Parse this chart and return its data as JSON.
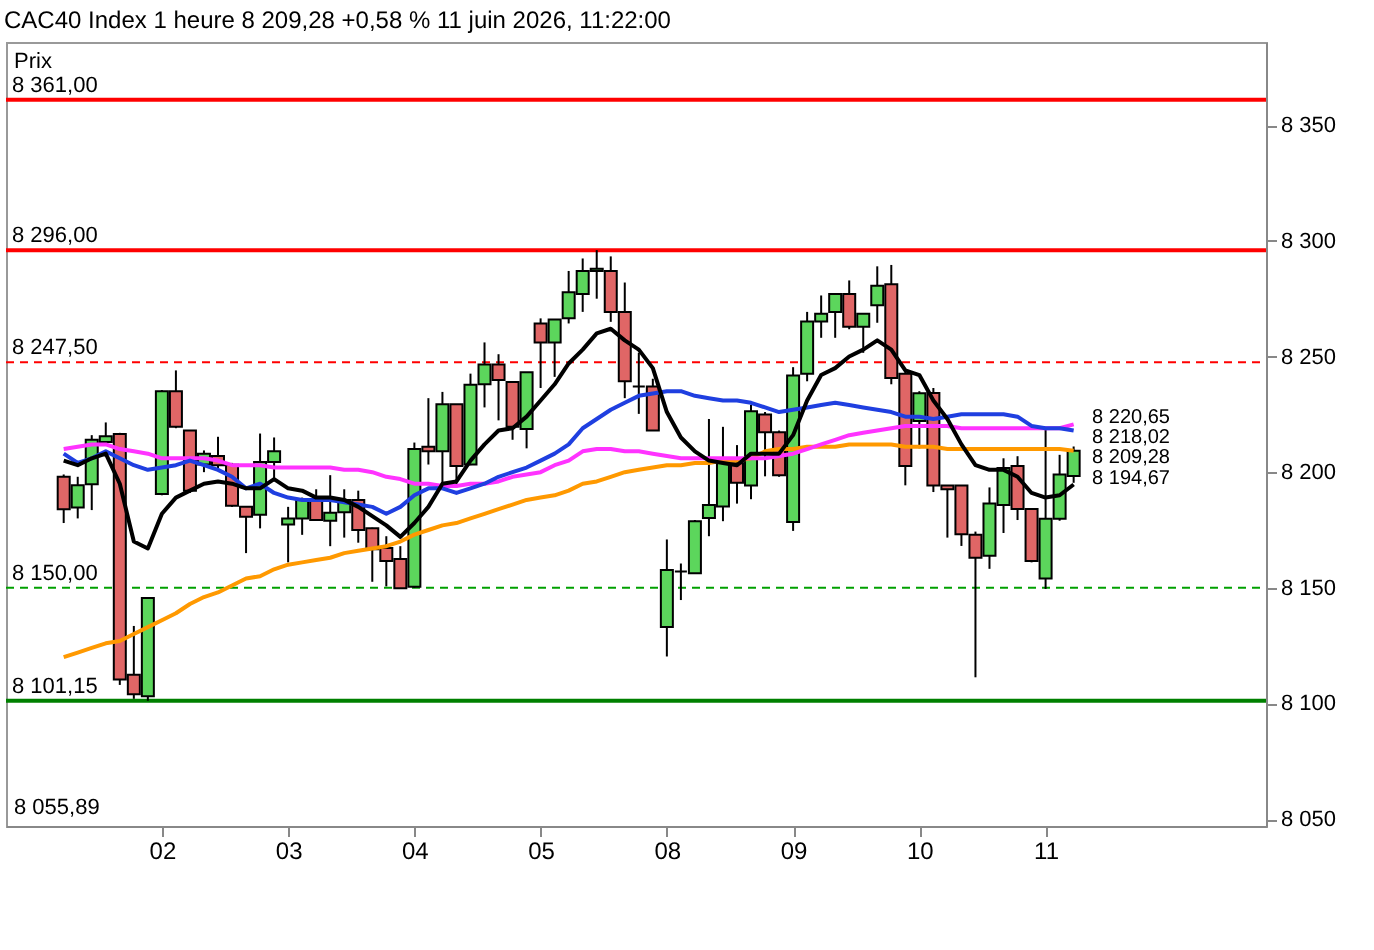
{
  "chart_data": {
    "type": "candlestick",
    "title": "CAC40 Index 1 heure 8 209,28 +0,58 % 11 juin 2026, 11:22:00",
    "categories": [
      null,
      null,
      null,
      null,
      null,
      null,
      null,
      "02",
      null,
      null,
      null,
      null,
      null,
      null,
      null,
      null,
      "03",
      null,
      null,
      null,
      null,
      null,
      null,
      null,
      null,
      "04",
      null,
      null,
      null,
      null,
      null,
      null,
      null,
      null,
      "05",
      null,
      null,
      null,
      null,
      null,
      null,
      null,
      null,
      "08",
      null,
      null,
      null,
      null,
      null,
      null,
      null,
      null,
      "09",
      null,
      null,
      null,
      null,
      null,
      null,
      null,
      null,
      "10",
      null,
      null,
      null,
      null,
      null,
      null,
      null,
      null,
      "11",
      null,
      null
    ],
    "colors": [
      "#e06666",
      "#5cd65c",
      "#5cd65c",
      "#5cd65c",
      "#e06666",
      "#e06666",
      "#5cd65c",
      "#5cd65c",
      "#e06666",
      "#e06666",
      "#5cd65c",
      "#e06666",
      "#e06666",
      "#e06666",
      "#5cd65c",
      "#5cd65c",
      "#5cd65c",
      "#5cd65c",
      "#e06666",
      "#5cd65c",
      "#5cd65c",
      "#e06666",
      "#e06666",
      "#e06666",
      "#e06666",
      "#5cd65c",
      "#e06666",
      "#5cd65c",
      "#e06666",
      "#5cd65c",
      "#5cd65c",
      "#e06666",
      "#e06666",
      "#5cd65c",
      "#e06666",
      "#5cd65c",
      "#5cd65c",
      "#5cd65c",
      "#5cd65c",
      "#e06666",
      "#e06666",
      "#000000",
      "#e06666",
      "#5cd65c",
      "#000000",
      "#5cd65c",
      "#5cd65c",
      "#5cd65c",
      "#e06666",
      "#5cd65c",
      "#e06666",
      "#e06666",
      "#5cd65c",
      "#5cd65c",
      "#5cd65c",
      "#5cd65c",
      "#e06666",
      "#5cd65c",
      "#5cd65c",
      "#e06666",
      "#e06666",
      "#5cd65c",
      "#e06666",
      "#e06666",
      "#e06666",
      "#e06666",
      "#5cd65c",
      "#5cd65c",
      "#e06666",
      "#e06666",
      "#5cd65c",
      "#5cd65c",
      "#5cd65c"
    ],
    "ohlc": [
      [
        8198,
        8199,
        8178,
        8184
      ],
      [
        8184.7,
        8198,
        8180,
        8194.3
      ],
      [
        8194.8,
        8216,
        8183.6,
        8214
      ],
      [
        8213,
        8221.5,
        8212,
        8215.5
      ],
      [
        8216.5,
        8217,
        8108,
        8110.4
      ],
      [
        8112.4,
        8133.5,
        8102,
        8104
      ],
      [
        8103.1,
        8145.6,
        8101.15,
        8145.6
      ],
      [
        8190.6,
        8235.5,
        8190,
        8235
      ],
      [
        8235,
        8244,
        8219,
        8219.6
      ],
      [
        8218,
        8218,
        8191,
        8192
      ],
      [
        8203.3,
        8209.4,
        8200,
        8208
      ],
      [
        8207,
        8215.3,
        8201,
        8203
      ],
      [
        8203.2,
        8204,
        8185,
        8185.5
      ],
      [
        8185,
        8185,
        8165,
        8180.7
      ],
      [
        8181.6,
        8216.7,
        8175.7,
        8204.4
      ],
      [
        8204.4,
        8215,
        8196,
        8209
      ],
      [
        8177.4,
        8185,
        8161,
        8180
      ],
      [
        8180,
        8189,
        8172.9,
        8188
      ],
      [
        8188,
        8192.6,
        8179,
        8179.3
      ],
      [
        8179,
        8198.7,
        8168,
        8182.5
      ],
      [
        8182.7,
        8192.6,
        8171.7,
        8188
      ],
      [
        8188,
        8192,
        8169.5,
        8175
      ],
      [
        8175.7,
        8176,
        8152.6,
        8166.7
      ],
      [
        8167.2,
        8172.3,
        8150.6,
        8161.6
      ],
      [
        8162.5,
        8168,
        8149.8,
        8149.8
      ],
      [
        8150.4,
        8212.8,
        8150,
        8210
      ],
      [
        8211,
        8232,
        8203.3,
        8209
      ],
      [
        8209,
        8234.7,
        8194.8,
        8229.4
      ],
      [
        8229.4,
        8229.4,
        8193.4,
        8202.7
      ],
      [
        8203.3,
        8242.6,
        8203,
        8237.8
      ],
      [
        8238,
        8256.1,
        8228,
        8246.6
      ],
      [
        8246.6,
        8251,
        8222.4,
        8239.8
      ],
      [
        8239,
        8239,
        8214,
        8219.6
      ],
      [
        8218.7,
        8243.2,
        8210.3,
        8243.2
      ],
      [
        8264.3,
        8266.5,
        8236.4,
        8256.1
      ],
      [
        8256.1,
        8266,
        8241.2,
        8266
      ],
      [
        8266.5,
        8287,
        8264.3,
        8277.8
      ],
      [
        8277,
        8292.4,
        8269.3,
        8287
      ],
      [
        8287,
        8296,
        8275,
        8288
      ],
      [
        8287,
        8293.3,
        8265,
        8269.3
      ],
      [
        8269.3,
        8282,
        8232,
        8239.3
      ],
      [
        8237,
        8251.6,
        8225.2,
        8237
      ],
      [
        8237,
        8240.4,
        8218,
        8218
      ],
      [
        8133,
        8170.9,
        8120.3,
        8157.7
      ],
      [
        8157,
        8160.5,
        8144.7,
        8157
      ],
      [
        8156.3,
        8179.3,
        8156,
        8178.8
      ],
      [
        8180.2,
        8223,
        8172.3,
        8185.8
      ],
      [
        8185.2,
        8219.6,
        8178.8,
        8204.7
      ],
      [
        8203.8,
        8211.7,
        8186.4,
        8195.4
      ],
      [
        8194.2,
        8229.1,
        8188.3,
        8226.3
      ],
      [
        8224.9,
        8226,
        8198.2,
        8217.3
      ],
      [
        8217.3,
        8218,
        8198,
        8198.7
      ],
      [
        8178.5,
        8245.4,
        8174.6,
        8241.8
      ],
      [
        8242.6,
        8269.3,
        8239.3,
        8265.1
      ],
      [
        8265.1,
        8276.4,
        8258.1,
        8268.5
      ],
      [
        8269.3,
        8277,
        8258.1,
        8277
      ],
      [
        8277,
        8282.9,
        8261.8,
        8262.9
      ],
      [
        8262.9,
        8268.5,
        8251.6,
        8268.5
      ],
      [
        8272.2,
        8289,
        8264.6,
        8280.6
      ],
      [
        8281.2,
        8289.6,
        8238,
        8240.7
      ],
      [
        8242.6,
        8244,
        8194.3,
        8202.7
      ],
      [
        8222.1,
        8235,
        8210.3,
        8234.1
      ],
      [
        8234.2,
        8236.4,
        8191.4,
        8194.2
      ],
      [
        8194.2,
        8194.2,
        8171.7,
        8192.6
      ],
      [
        8194.2,
        8194.2,
        8168.1,
        8173.2
      ],
      [
        8172.9,
        8174.3,
        8111.3,
        8163
      ],
      [
        8163.9,
        8193.4,
        8158.2,
        8186.4
      ],
      [
        8185.8,
        8206,
        8173.7,
        8201.8
      ],
      [
        8202.7,
        8206.9,
        8179.3,
        8184.1
      ],
      [
        8184.1,
        8184.1,
        8161,
        8161.6
      ],
      [
        8154,
        8218.7,
        8149.5,
        8179.9
      ],
      [
        8179.9,
        8207.5,
        8179,
        8199
      ],
      [
        8198.3,
        8211.1,
        8195.4,
        8209.28
      ]
    ],
    "series": [
      {
        "type": "line",
        "color": "#ff9900",
        "values": [
          8120,
          8122,
          8124,
          8126,
          8127,
          8130,
          8133,
          8136,
          8139,
          8143,
          8146,
          8148,
          8151,
          8154,
          8155,
          8158,
          8160,
          8161,
          8162,
          8163,
          8165,
          8166,
          8167,
          8168,
          8170,
          8173,
          8175,
          8177,
          8178,
          8180,
          8182,
          8184,
          8186,
          8188,
          8189,
          8190,
          8192,
          8195,
          8196,
          8198,
          8200,
          8201,
          8202,
          8203,
          8203,
          8204,
          8204,
          8205,
          8205,
          8206,
          8209,
          8210,
          8210,
          8211,
          8211,
          8211,
          8212,
          8212,
          8212,
          8212,
          8211,
          8211,
          8211,
          8210,
          8210,
          8210,
          8210,
          8210,
          8210,
          8210,
          8210,
          8210,
          8209.28
        ],
        "value_labels": [
          null,
          null,
          null,
          null,
          null,
          null,
          null,
          null,
          null,
          null,
          null,
          null,
          null,
          null,
          null,
          null,
          null,
          null,
          null,
          null,
          null,
          null,
          null,
          null,
          null,
          null,
          null,
          null,
          null,
          null,
          null,
          null,
          null,
          null,
          null,
          null,
          null,
          null,
          null,
          null,
          null,
          null,
          null,
          null,
          null,
          null,
          null,
          null,
          null,
          null,
          null,
          null,
          null,
          null,
          null,
          null,
          null,
          null,
          null,
          null,
          null,
          null,
          null,
          null,
          null,
          null,
          null,
          null,
          null,
          null,
          null,
          null,
          "8 209,28"
        ]
      },
      {
        "type": "line",
        "color": "#ff33ff",
        "values": [
          8210,
          8211,
          8212,
          8212,
          8210,
          8209,
          8208,
          8206,
          8206,
          8206,
          8206,
          8205,
          8203,
          8203,
          8203,
          8202,
          8202,
          8202,
          8202,
          8202,
          8201,
          8201,
          8200,
          8198,
          8197,
          8195,
          8195,
          8194,
          8194,
          8195,
          8195,
          8196,
          8198,
          8199,
          8200,
          8203,
          8205,
          8209,
          8210,
          8210,
          8209,
          8209,
          8208,
          8207,
          8206,
          8206,
          8206,
          8206,
          8206,
          8206,
          8206,
          8207,
          8208,
          8210,
          8212,
          8214,
          8216,
          8217,
          8218,
          8219,
          8220,
          8220,
          8220,
          8220,
          8219,
          8219,
          8219,
          8219,
          8219,
          8219,
          8219,
          8219,
          8220.65
        ],
        "value_labels": [
          null,
          null,
          null,
          null,
          null,
          null,
          null,
          null,
          null,
          null,
          null,
          null,
          null,
          null,
          null,
          null,
          null,
          null,
          null,
          null,
          null,
          null,
          null,
          null,
          null,
          null,
          null,
          null,
          null,
          null,
          null,
          null,
          null,
          null,
          null,
          null,
          null,
          null,
          null,
          null,
          null,
          null,
          null,
          null,
          null,
          null,
          null,
          null,
          null,
          null,
          null,
          null,
          null,
          null,
          null,
          null,
          null,
          null,
          null,
          null,
          null,
          null,
          null,
          null,
          null,
          null,
          null,
          null,
          null,
          null,
          null,
          null,
          "8 220,65"
        ]
      },
      {
        "type": "line",
        "color": "#1f3fe0",
        "values": [
          8208,
          8204,
          8206,
          8209,
          8206,
          8203,
          8201,
          8202,
          8203,
          8205,
          8203,
          8201,
          8198,
          8193,
          8195,
          8191,
          8189,
          8188,
          8188,
          8188,
          8187,
          8186,
          8185,
          8182,
          8185,
          8190,
          8193,
          8193,
          8191,
          8193,
          8195,
          8198,
          8200,
          8202,
          8205,
          8208,
          8212,
          8219,
          8223,
          8227,
          8230,
          8233,
          8234,
          8235,
          8235,
          8233,
          8232,
          8231,
          8231,
          8230,
          8228,
          8226,
          8227,
          8228,
          8229,
          8230,
          8229,
          8228,
          8227,
          8226,
          8224,
          8224,
          8223,
          8224,
          8225,
          8225,
          8225,
          8225,
          8224,
          8220,
          8219,
          8219,
          8218.02
        ],
        "value_labels": [
          null,
          null,
          null,
          null,
          null,
          null,
          null,
          null,
          null,
          null,
          null,
          null,
          null,
          null,
          null,
          null,
          null,
          null,
          null,
          null,
          null,
          null,
          null,
          null,
          null,
          null,
          null,
          null,
          null,
          null,
          null,
          null,
          null,
          null,
          null,
          null,
          null,
          null,
          null,
          null,
          null,
          null,
          null,
          null,
          null,
          null,
          null,
          null,
          null,
          null,
          null,
          null,
          null,
          null,
          null,
          null,
          null,
          null,
          null,
          null,
          null,
          null,
          null,
          null,
          null,
          null,
          null,
          null,
          null,
          null,
          null,
          null,
          "8 218,02"
        ]
      },
      {
        "type": "line",
        "color": "#000000",
        "values": [
          8205,
          8203,
          8206,
          8208,
          8195,
          8170,
          8167,
          8182,
          8189,
          8192,
          8195,
          8196,
          8195,
          8193,
          8193,
          8197,
          8193,
          8192,
          8189,
          8189,
          8188,
          8185,
          8181,
          8177,
          8172,
          8178,
          8185,
          8195,
          8196,
          8205,
          8212,
          8218,
          8219,
          8224,
          8231,
          8238,
          8247,
          8253,
          8260,
          8262,
          8257,
          8253,
          8245,
          8226,
          8215,
          8209,
          8205,
          8204,
          8203,
          8208,
          8208,
          8208,
          8216,
          8231,
          8242,
          8245,
          8250,
          8253,
          8257,
          8253,
          8244,
          8242,
          8231,
          8223,
          8212,
          8203,
          8201,
          8201,
          8198,
          8191,
          8189,
          8190,
          8194.67
        ],
        "value_labels": [
          null,
          null,
          null,
          null,
          null,
          null,
          null,
          null,
          null,
          null,
          null,
          null,
          null,
          null,
          null,
          null,
          null,
          null,
          null,
          null,
          null,
          null,
          null,
          null,
          null,
          null,
          null,
          null,
          null,
          null,
          null,
          null,
          null,
          null,
          null,
          null,
          null,
          null,
          null,
          null,
          null,
          null,
          null,
          null,
          null,
          null,
          null,
          null,
          null,
          null,
          null,
          null,
          null,
          null,
          null,
          null,
          null,
          null,
          null,
          null,
          null,
          null,
          null,
          null,
          null,
          null,
          null,
          null,
          null,
          null,
          null,
          null,
          "8 194,67"
        ]
      }
    ],
    "ylim": [
      8047,
      8386
    ],
    "yticks": [
      {
        "value": 8050,
        "label": "8 050"
      },
      {
        "value": 8100,
        "label": "8 100"
      },
      {
        "value": 8150,
        "label": "8 150"
      },
      {
        "value": 8200,
        "label": "8 200"
      },
      {
        "value": 8250,
        "label": "8 250"
      },
      {
        "value": 8300,
        "label": "8 300"
      },
      {
        "value": 8350,
        "label": "8 350"
      }
    ],
    "ref_lines": [
      {
        "axis": "y",
        "value": 8361,
        "label": "8 361,00",
        "color": "#ff0000",
        "line_style": "solid"
      },
      {
        "axis": "y",
        "value": 8296,
        "label": "8 296,00",
        "color": "#ff0000",
        "line_style": "solid"
      },
      {
        "axis": "y",
        "value": 8247.5,
        "label": "8 247,50",
        "color": "#ff0000",
        "line_style": "dashed"
      },
      {
        "axis": "y",
        "value": 8150,
        "label": "8 150,00",
        "color": "#00a000",
        "line_style": "dashed"
      },
      {
        "axis": "y",
        "value": 8101.15,
        "label": "8 101,15",
        "color": "#008000",
        "line_style": "solid"
      }
    ],
    "annotations": [
      "Prix",
      "8 055,89"
    ],
    "grid": false
  }
}
